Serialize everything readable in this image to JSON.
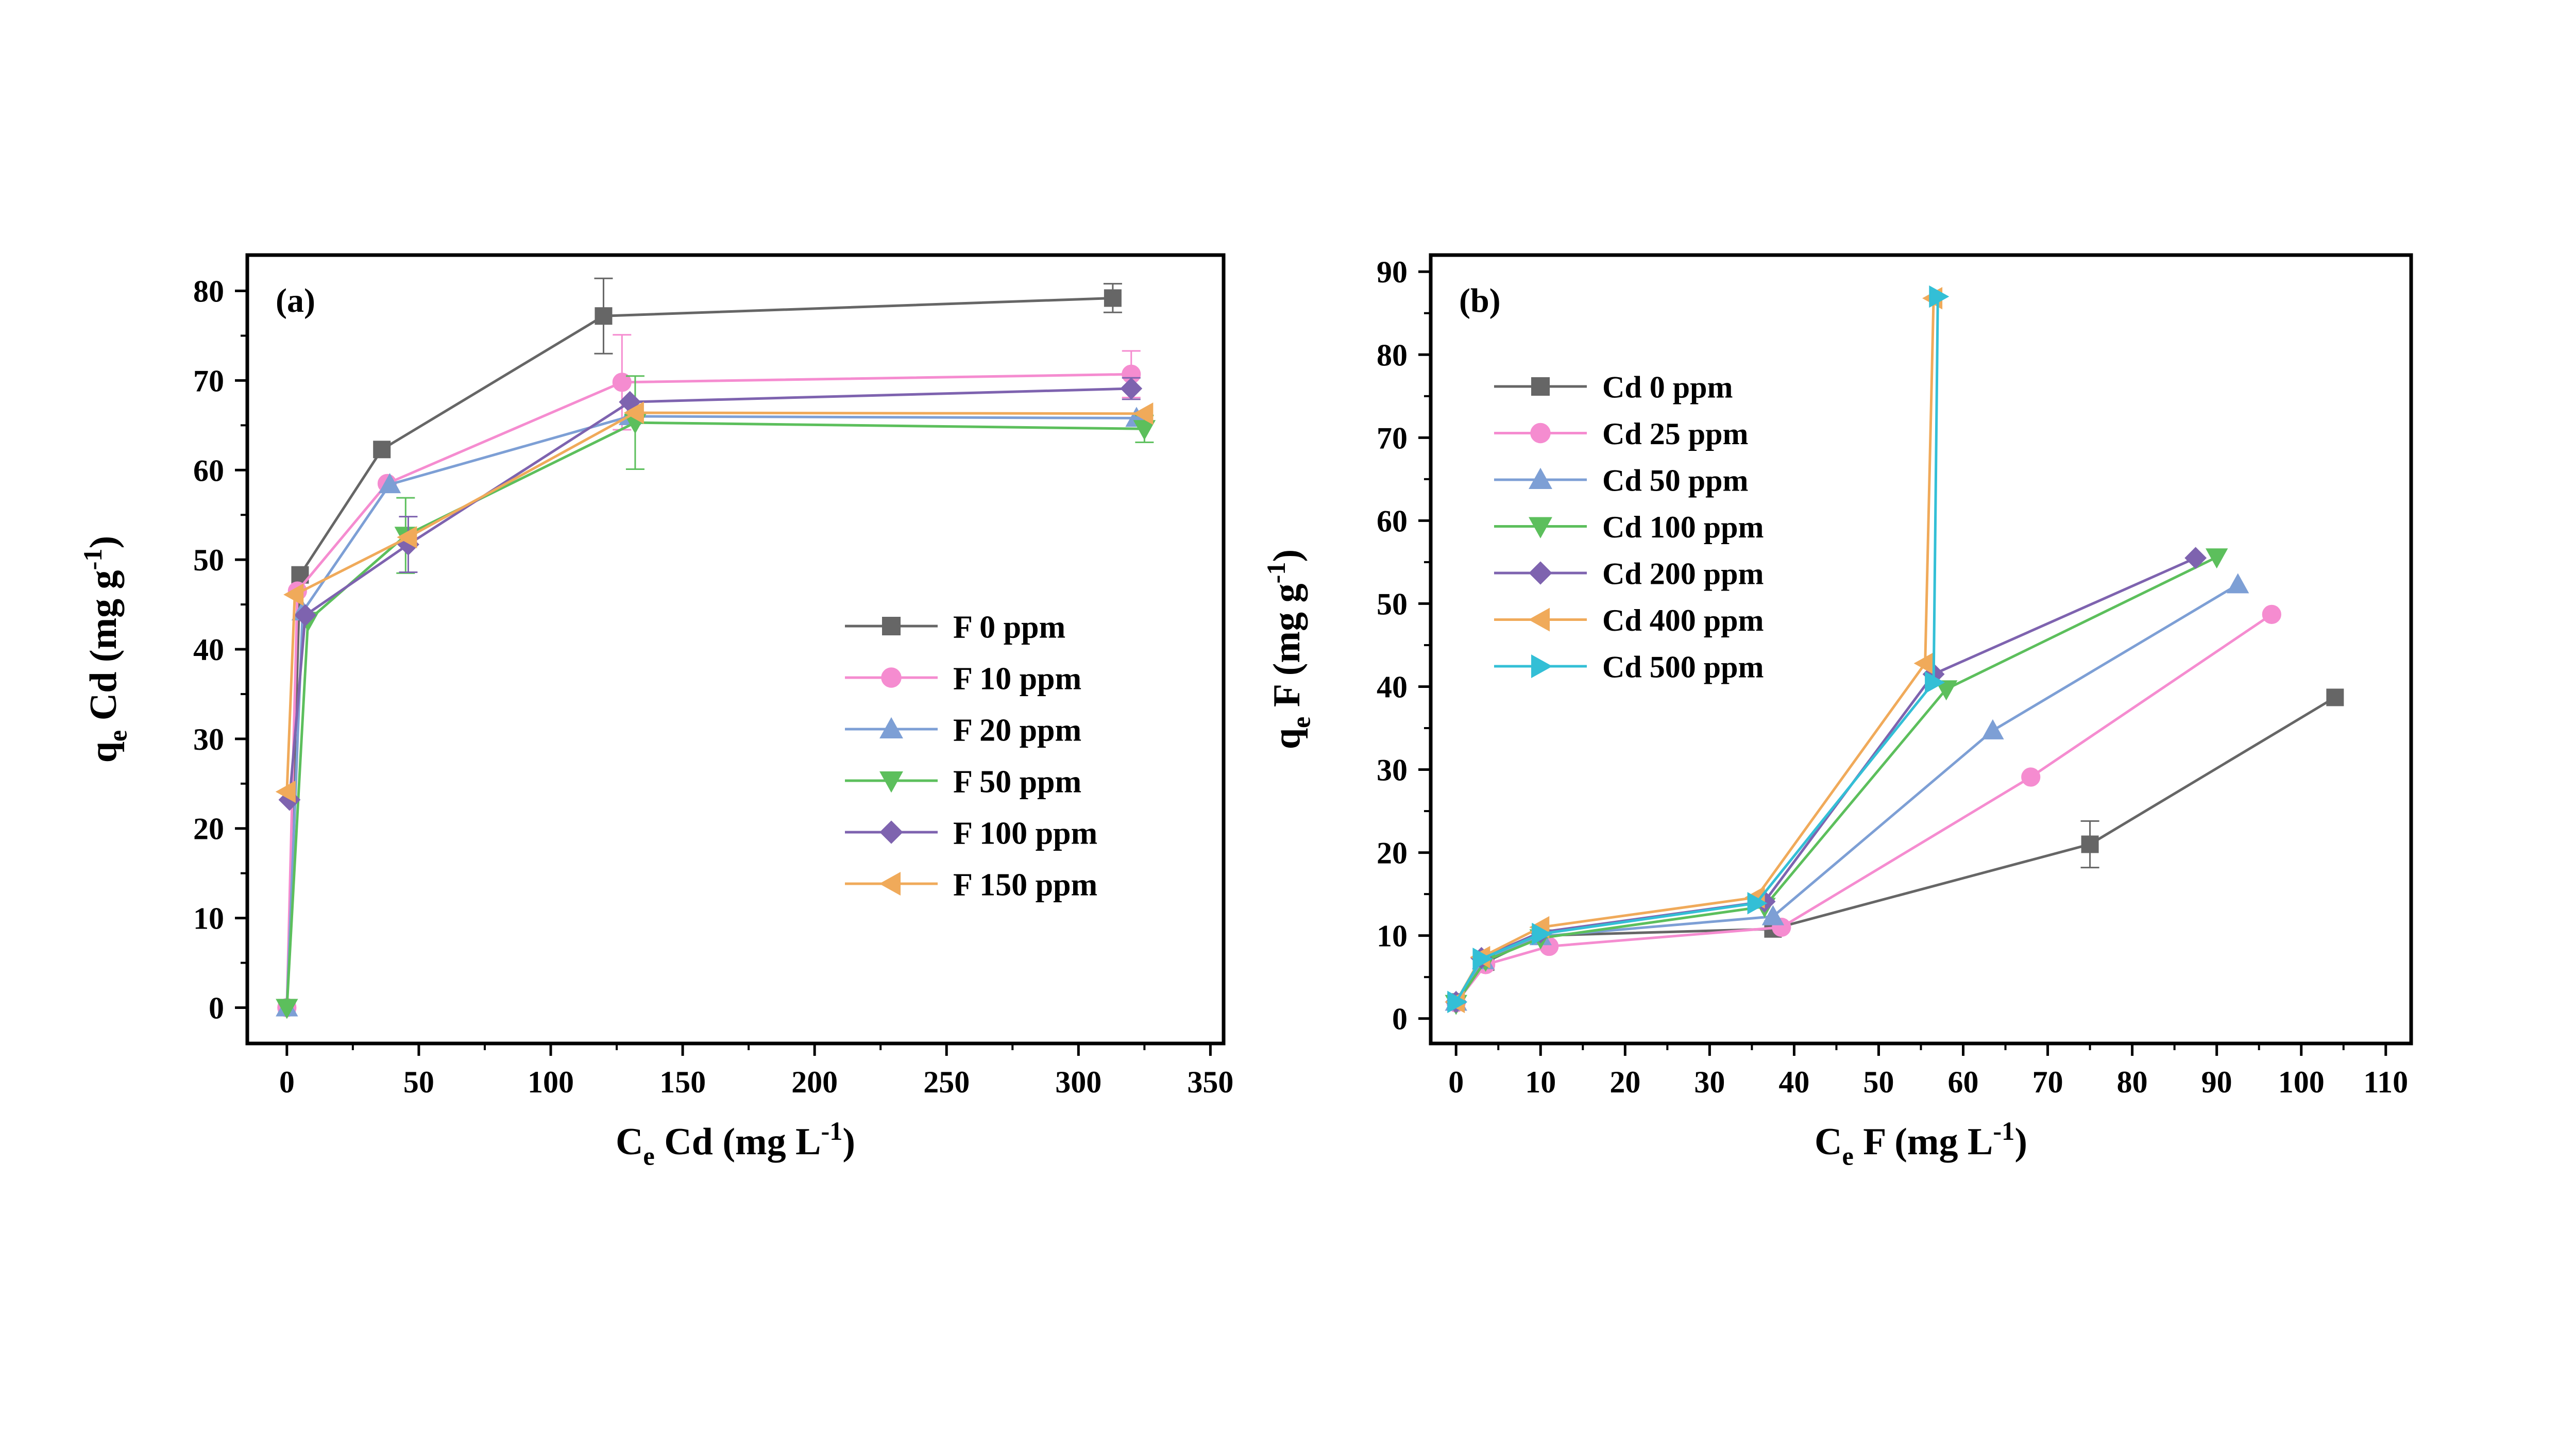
{
  "chart_data": [
    {
      "type": "line",
      "panel_label": "(a)",
      "xlabel": {
        "main": "C",
        "sub": "e",
        "rest": " Cd (mg L",
        "sup": "-1",
        "end": ")"
      },
      "ylabel": {
        "main": "q",
        "sub": "e",
        "rest": " Cd (mg g",
        "sup": "-1",
        "end": ")"
      },
      "xlim": [
        -15,
        355
      ],
      "ylim": [
        -4,
        84
      ],
      "xticks": [
        0,
        50,
        100,
        150,
        200,
        250,
        300,
        350
      ],
      "yticks": [
        0,
        10,
        20,
        30,
        40,
        50,
        60,
        70,
        80
      ],
      "grid": false,
      "legend_position": "center-right",
      "series": [
        {
          "name": "F 0 ppm",
          "color": "#666666",
          "marker": "square",
          "x": [
            0,
            5,
            36,
            120,
            313
          ],
          "y": [
            0,
            48.3,
            62.3,
            77.2,
            79.2
          ],
          "err": [
            0,
            0,
            0,
            4.2,
            1.6
          ]
        },
        {
          "name": "F 10 ppm",
          "color": "#F58CD0",
          "marker": "circle",
          "x": [
            0,
            4,
            38,
            127,
            320
          ],
          "y": [
            0,
            46.5,
            58.5,
            69.8,
            70.7
          ],
          "err": [
            0,
            0,
            0,
            5.3,
            2.6
          ]
        },
        {
          "name": "F 20 ppm",
          "color": "#7D9FD5",
          "marker": "triangle-up",
          "x": [
            0,
            6,
            39,
            130,
            322
          ],
          "y": [
            0,
            44.2,
            58.4,
            66.0,
            65.8
          ],
          "err": [
            0,
            0,
            0,
            0,
            0
          ]
        },
        {
          "name": "F 50 ppm",
          "color": "#5CBF5C",
          "marker": "triangle-down",
          "x": [
            0,
            8,
            45,
            132,
            325
          ],
          "y": [
            0,
            43.2,
            52.7,
            65.3,
            64.6
          ],
          "err": [
            0,
            0,
            4.2,
            5.2,
            1.5
          ]
        },
        {
          "name": "F 100 ppm",
          "color": "#7E63AF",
          "marker": "diamond",
          "x": [
            1,
            7,
            46,
            130,
            320
          ],
          "y": [
            23.2,
            43.8,
            51.7,
            67.6,
            69.1
          ],
          "err": [
            0,
            0,
            3.1,
            0,
            1.2
          ]
        },
        {
          "name": "F 150 ppm",
          "color": "#F0AA5A",
          "marker": "triangle-left",
          "x": [
            0,
            3,
            46,
            132,
            325
          ],
          "y": [
            24.1,
            46.1,
            52.5,
            66.4,
            66.3
          ],
          "err": [
            0,
            0,
            0,
            0,
            0
          ]
        }
      ]
    },
    {
      "type": "line",
      "panel_label": "(b)",
      "xlabel": {
        "main": "C",
        "sub": "e",
        "rest": " F (mg L",
        "sup": "-1",
        "end": ")"
      },
      "ylabel": {
        "main": "q",
        "sub": "e",
        "rest": " F (mg g",
        "sup": "-1",
        "end": ")"
      },
      "xlim": [
        -3,
        113
      ],
      "ylim": [
        -3,
        92
      ],
      "xticks": [
        0,
        10,
        20,
        30,
        40,
        50,
        60,
        70,
        80,
        90,
        100,
        110
      ],
      "yticks": [
        0,
        10,
        20,
        30,
        40,
        50,
        60,
        70,
        80,
        90
      ],
      "grid": false,
      "legend_position": "upper-left",
      "series": [
        {
          "name": "Cd 0 ppm",
          "color": "#666666",
          "marker": "square",
          "x": [
            0,
            3.5,
            10,
            37.5,
            75,
            104
          ],
          "y": [
            2.0,
            6.8,
            10.0,
            10.8,
            21.0,
            38.7
          ],
          "err": [
            0,
            0,
            0,
            0,
            2.8,
            0
          ]
        },
        {
          "name": "Cd 25 ppm",
          "color": "#F58CD0",
          "marker": "circle",
          "x": [
            0,
            3.5,
            11,
            38.5,
            68,
            96.5
          ],
          "y": [
            1.9,
            6.5,
            8.7,
            11.0,
            29.1,
            48.7
          ],
          "err": [
            0,
            0,
            0,
            0,
            0,
            0
          ]
        },
        {
          "name": "Cd 50 ppm",
          "color": "#7D9FD5",
          "marker": "triangle-up",
          "x": [
            0,
            3.2,
            10,
            37.5,
            63.5,
            92.5
          ],
          "y": [
            2.0,
            7.0,
            9.9,
            12.3,
            34.7,
            52.3
          ],
          "err": [
            0,
            0,
            0,
            0,
            0,
            0
          ]
        },
        {
          "name": "Cd 100 ppm",
          "color": "#5CBF5C",
          "marker": "triangle-down",
          "x": [
            0,
            3.5,
            10,
            36.5,
            58,
            90
          ],
          "y": [
            1.8,
            7.0,
            9.7,
            13.5,
            39.7,
            55.6
          ],
          "err": [
            0,
            0,
            0,
            0,
            0,
            0
          ]
        },
        {
          "name": "Cd 200 ppm",
          "color": "#7E63AF",
          "marker": "diamond",
          "x": [
            0,
            3,
            10,
            36.5,
            56.5,
            87.5
          ],
          "y": [
            2.0,
            7.3,
            10.4,
            14.1,
            41.5,
            55.5
          ],
          "err": [
            0,
            0,
            0,
            0,
            0,
            0
          ]
        },
        {
          "name": "Cd 400 ppm",
          "color": "#F0AA5A",
          "marker": "triangle-left",
          "x": [
            0,
            3,
            10,
            35.5,
            55.5,
            56.5
          ],
          "y": [
            2.0,
            7.4,
            11.0,
            14.6,
            42.8,
            86.8
          ],
          "err": [
            0,
            0,
            0,
            0,
            0,
            0
          ]
        },
        {
          "name": "Cd 500 ppm",
          "color": "#33BFD6",
          "marker": "triangle-right",
          "x": [
            0,
            3,
            10,
            35.5,
            56.5,
            57
          ],
          "y": [
            2.0,
            7.2,
            10.2,
            13.9,
            40.5,
            87.0
          ],
          "err": [
            0,
            0,
            0,
            0,
            0,
            0
          ]
        }
      ]
    }
  ]
}
